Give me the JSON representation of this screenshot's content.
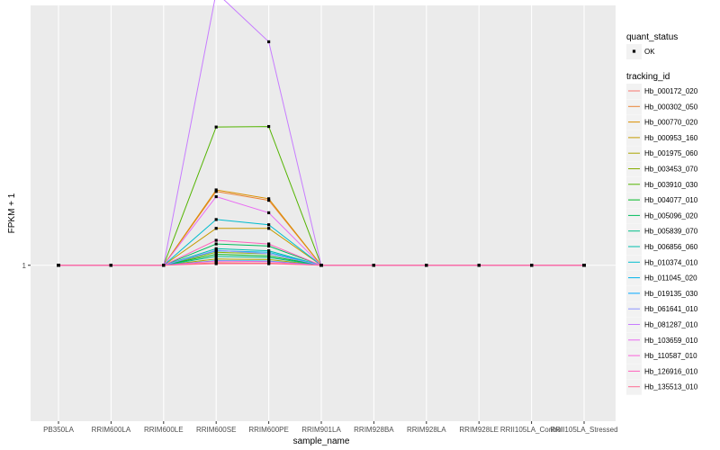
{
  "chart_data": {
    "type": "line",
    "xlabel": "sample_name",
    "ylabel": "FPKM + 1",
    "categories": [
      "PB350LA",
      "RRIM600LA",
      "RRIM600LE",
      "RRIM600SE",
      "RRIM600PE",
      "RRIM901LA",
      "RRIM928BA",
      "RRIM928LA",
      "RRIM928LE",
      "RRII105LA_Control",
      "RRII105LA_Stressed"
    ],
    "y_ticks": [
      {
        "value": 1,
        "label": "1"
      }
    ],
    "ylim": [
      0.97,
      1.05
    ],
    "grid": true,
    "legend_position": "right",
    "point_legend": {
      "title": "quant_status",
      "entries": [
        "OK"
      ]
    },
    "color_legend_title": "tracking_id",
    "series": [
      {
        "name": "Hb_000172_020",
        "color": "#F8766D",
        "values": [
          1,
          1,
          1,
          1.0005,
          1.0004,
          1,
          1,
          1,
          1,
          1,
          1
        ]
      },
      {
        "name": "Hb_000302_050",
        "color": "#EB8335",
        "values": [
          1,
          1,
          1,
          1.0142,
          1.0125,
          1,
          1,
          1,
          1,
          1,
          1
        ]
      },
      {
        "name": "Hb_000770_020",
        "color": "#DA8F00",
        "values": [
          1,
          1,
          1,
          1.0145,
          1.0128,
          1,
          1,
          1,
          1,
          1,
          1
        ]
      },
      {
        "name": "Hb_000953_160",
        "color": "#C49A00",
        "values": [
          1,
          1,
          1,
          1.0071,
          1.0071,
          1,
          1,
          1,
          1,
          1,
          1
        ]
      },
      {
        "name": "Hb_001975_060",
        "color": "#A9A400",
        "values": [
          1,
          1,
          1,
          1.0012,
          1.0011,
          1,
          1,
          1,
          1,
          1,
          1
        ]
      },
      {
        "name": "Hb_003453_070",
        "color": "#86AC00",
        "values": [
          1,
          1,
          1,
          1.0025,
          1.0022,
          1,
          1,
          1,
          1,
          1,
          1
        ]
      },
      {
        "name": "Hb_003910_030",
        "color": "#53B400",
        "values": [
          1,
          1,
          1,
          1.0266,
          1.0267,
          1,
          1,
          1,
          1,
          1,
          1
        ]
      },
      {
        "name": "Hb_004077_010",
        "color": "#00B823",
        "values": [
          1,
          1,
          1,
          1.0021,
          1.0018,
          1,
          1,
          1,
          1,
          1,
          1
        ]
      },
      {
        "name": "Hb_005096_020",
        "color": "#00BC5C",
        "values": [
          1,
          1,
          1,
          1.0041,
          1.0037,
          1,
          1,
          1,
          1,
          1,
          1
        ]
      },
      {
        "name": "Hb_005839_070",
        "color": "#00BE88",
        "values": [
          1,
          1,
          1,
          1.0017,
          1.0015,
          1,
          1,
          1,
          1,
          1,
          1
        ]
      },
      {
        "name": "Hb_006856_060",
        "color": "#00BFAC",
        "values": [
          1,
          1,
          1,
          1.0032,
          1.0028,
          1,
          1,
          1,
          1,
          1,
          1
        ]
      },
      {
        "name": "Hb_010374_010",
        "color": "#00BCCE",
        "values": [
          1,
          1,
          1,
          1.0088,
          1.0078,
          1,
          1,
          1,
          1,
          1,
          1
        ]
      },
      {
        "name": "Hb_011045_020",
        "color": "#00B4EB",
        "values": [
          1,
          1,
          1,
          1.0028,
          1.0025,
          1,
          1,
          1,
          1,
          1,
          1
        ]
      },
      {
        "name": "Hb_019135_030",
        "color": "#00A8FF",
        "values": [
          1,
          1,
          1,
          1.0009,
          1.0008,
          1,
          1,
          1,
          1,
          1,
          1
        ]
      },
      {
        "name": "Hb_061641_010",
        "color": "#8C94FF",
        "values": [
          1,
          1,
          1,
          1.0029,
          1.0022,
          1,
          1,
          1,
          1,
          1,
          1
        ]
      },
      {
        "name": "Hb_081287_010",
        "color": "#C77CFF",
        "values": [
          1,
          1,
          1,
          1.0525,
          1.043,
          1,
          1,
          1,
          1,
          1,
          1
        ]
      },
      {
        "name": "Hb_103659_010",
        "color": "#E96AF3",
        "values": [
          1,
          1,
          1,
          1.0132,
          1.0101,
          1,
          1,
          1,
          1,
          1,
          1
        ]
      },
      {
        "name": "Hb_110587_010",
        "color": "#FA62DB",
        "values": [
          1,
          1,
          1,
          1.0008,
          1.0007,
          1,
          1,
          1,
          1,
          1,
          1
        ]
      },
      {
        "name": "Hb_126916_010",
        "color": "#FF62BC",
        "values": [
          1,
          1,
          1,
          1.0048,
          1.0041,
          1,
          1,
          1,
          1,
          1,
          1
        ]
      },
      {
        "name": "Hb_135513_010",
        "color": "#FF6C93",
        "values": [
          1,
          1,
          1,
          1.0003,
          1.0003,
          1,
          1,
          1,
          1,
          1,
          1
        ]
      }
    ]
  }
}
